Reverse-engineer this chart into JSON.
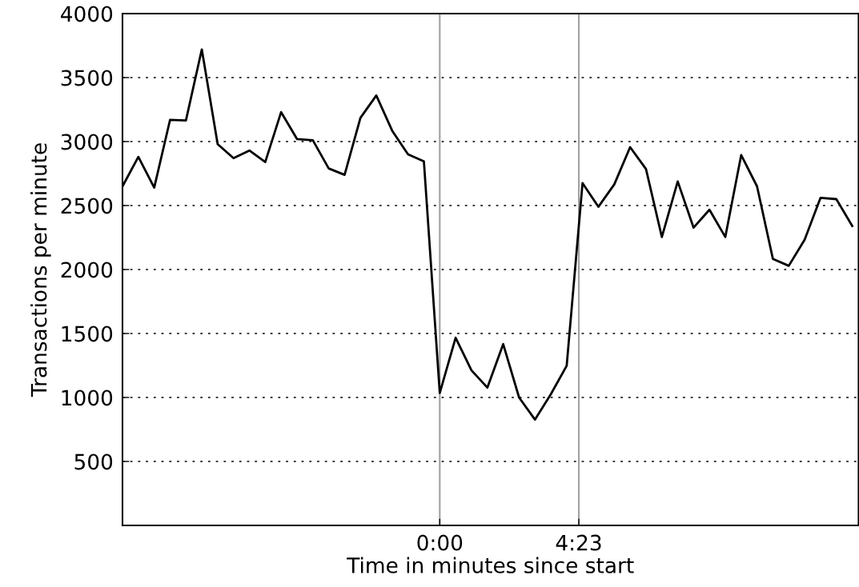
{
  "chart_data": {
    "type": "line",
    "xlabel": "Time in minutes since start",
    "ylabel": "Transactions per minute",
    "x": [
      -10,
      -9.5,
      -9,
      -8.5,
      -8,
      -7.5,
      -7,
      -6.5,
      -6,
      -5.5,
      -5,
      -4.5,
      -4,
      -3.5,
      -3,
      -2.5,
      -2,
      -1.5,
      -1,
      -0.5,
      0,
      0.5,
      1,
      1.5,
      2,
      2.5,
      3,
      3.5,
      4,
      4.5,
      5,
      5.5,
      6,
      6.5,
      7,
      7.5,
      8,
      8.5,
      9,
      9.5,
      10,
      10.5,
      11,
      11.5,
      12,
      12.5,
      13
    ],
    "series": [
      {
        "color": "#000000",
        "values": [
          2650,
          2880,
          2640,
          3170,
          3165,
          3720,
          2980,
          2870,
          2930,
          2840,
          3230,
          3020,
          3010,
          2790,
          2740,
          3185,
          3360,
          3085,
          2900,
          2845,
          1035,
          1467,
          1212,
          1077,
          1417,
          1000,
          827,
          1025,
          1248,
          2675,
          2490,
          2665,
          2956,
          2785,
          2254,
          2688,
          2327,
          2467,
          2254,
          2894,
          2650,
          2083,
          2029,
          2233,
          2560,
          2550,
          2340
        ]
      }
    ],
    "xlim": [
      -10,
      13.2
    ],
    "xticks": [
      {
        "value": 0,
        "label": "0:00"
      },
      {
        "value": 4.383,
        "label": "4:23"
      }
    ],
    "ylim": [
      0,
      4000
    ],
    "yticks": [
      500,
      1000,
      1500,
      2000,
      2500,
      3000,
      3500,
      4000
    ],
    "ref_lines": [
      {
        "axis": "x",
        "value": 0,
        "color": "#a0a0a0"
      },
      {
        "axis": "x",
        "value": 4.383,
        "color": "#a0a0a0"
      }
    ],
    "grid": "y",
    "line_style": "solid",
    "marker": "none"
  }
}
